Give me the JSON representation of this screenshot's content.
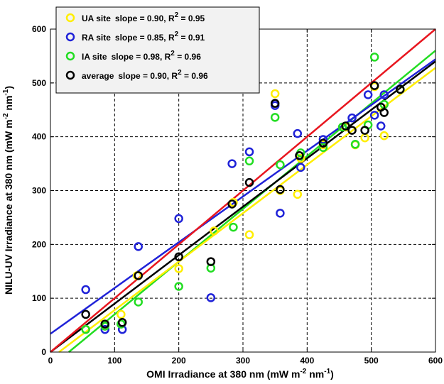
{
  "chart_data": {
    "type": "scatter",
    "xlabel": "OMI Irradiance at 380 nm (mW m",
    "xlabel_sup1": "-2",
    "xlabel_mid": " nm",
    "xlabel_sup2": "-1",
    "xlabel_end": ")",
    "ylabel": "NILU-UV Irradiance at 380 nm (mW m",
    "ylabel_sup1": "-2",
    "ylabel_mid": " nm",
    "ylabel_sup2": "-1",
    "ylabel_end": ")",
    "xlim": [
      0,
      600
    ],
    "ylim": [
      0,
      600
    ],
    "xticks": [
      "0",
      "100",
      "200",
      "300",
      "400",
      "500",
      "600"
    ],
    "yticks": [
      "0",
      "100",
      "200",
      "300",
      "400",
      "500",
      "600"
    ],
    "grid": true,
    "legend_position": "top-left",
    "one_to_one_line": {
      "color": "#e8161f",
      "points": [
        [
          0,
          0
        ],
        [
          600,
          600
        ]
      ]
    },
    "series": [
      {
        "name": "UA site",
        "legend_text": "slope = 0.90, R",
        "legend_sup": "2",
        "legend_end": " = 0.95",
        "color": "#ffee00",
        "fit": {
          "slope": 0.9,
          "intercept": -12
        },
        "points": [
          [
            55,
            42
          ],
          [
            85,
            52
          ],
          [
            110,
            70
          ],
          [
            135,
            142
          ],
          [
            200,
            155
          ],
          [
            255,
            225
          ],
          [
            285,
            278
          ],
          [
            310,
            218
          ],
          [
            350,
            480
          ],
          [
            358,
            300
          ],
          [
            385,
            293
          ],
          [
            390,
            360
          ],
          [
            425,
            385
          ],
          [
            460,
            418
          ],
          [
            475,
            385
          ],
          [
            490,
            398
          ],
          [
            505,
            493
          ],
          [
            520,
            402
          ],
          [
            545,
            488
          ]
        ]
      },
      {
        "name": "RA site",
        "legend_text": "slope = 0.85, R",
        "legend_sup": "2",
        "legend_end": " = 0.91",
        "color": "#1f22d8",
        "fit": {
          "slope": 0.85,
          "intercept": 34
        },
        "points": [
          [
            55,
            116
          ],
          [
            85,
            42
          ],
          [
            112,
            42
          ],
          [
            137,
            196
          ],
          [
            200,
            248
          ],
          [
            250,
            101
          ],
          [
            283,
            350
          ],
          [
            310,
            372
          ],
          [
            350,
            458
          ],
          [
            358,
            258
          ],
          [
            385,
            406
          ],
          [
            390,
            343
          ],
          [
            425,
            395
          ],
          [
            470,
            435
          ],
          [
            495,
            478
          ],
          [
            505,
            440
          ],
          [
            515,
            420
          ],
          [
            520,
            478
          ]
        ]
      },
      {
        "name": "IA site",
        "legend_text": "slope = 0.98, R",
        "legend_sup": "2",
        "legend_end": " = 0.96",
        "color": "#22dd22",
        "fit": {
          "slope": 0.98,
          "intercept": -28
        },
        "points": [
          [
            55,
            42
          ],
          [
            85,
            48
          ],
          [
            110,
            52
          ],
          [
            137,
            93
          ],
          [
            200,
            122
          ],
          [
            250,
            156
          ],
          [
            285,
            232
          ],
          [
            310,
            355
          ],
          [
            350,
            436
          ],
          [
            358,
            348
          ],
          [
            390,
            370
          ],
          [
            425,
            380
          ],
          [
            455,
            418
          ],
          [
            475,
            386
          ],
          [
            495,
            422
          ],
          [
            505,
            548
          ],
          [
            520,
            460
          ],
          [
            545,
            488
          ]
        ]
      },
      {
        "name": "average",
        "legend_text": "slope = 0.90, R",
        "legend_sup": "2",
        "legend_end": " = 0.96",
        "color": "#000000",
        "fit": {
          "slope": 0.9,
          "intercept": 0
        },
        "points": [
          [
            55,
            70
          ],
          [
            85,
            52
          ],
          [
            112,
            55
          ],
          [
            137,
            142
          ],
          [
            200,
            177
          ],
          [
            250,
            168
          ],
          [
            283,
            275
          ],
          [
            310,
            315
          ],
          [
            350,
            462
          ],
          [
            358,
            302
          ],
          [
            388,
            365
          ],
          [
            425,
            388
          ],
          [
            460,
            420
          ],
          [
            470,
            412
          ],
          [
            490,
            412
          ],
          [
            505,
            495
          ],
          [
            515,
            455
          ],
          [
            520,
            445
          ],
          [
            545,
            488
          ]
        ]
      }
    ]
  }
}
